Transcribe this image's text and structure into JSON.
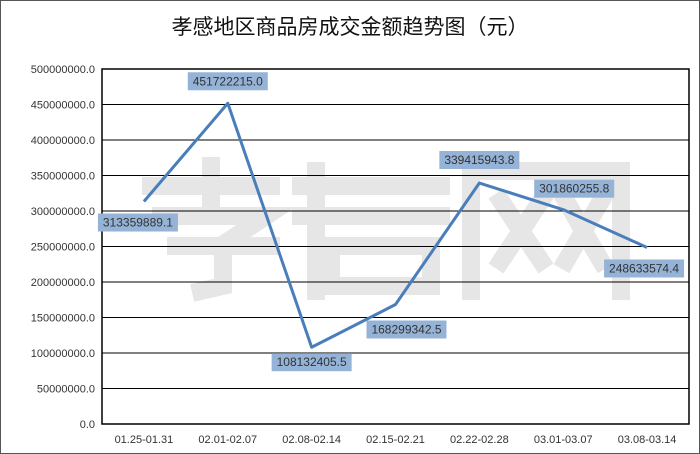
{
  "chart_data": {
    "type": "line",
    "title": "孝感地区商品房成交金额趋势图（元）",
    "xlabel": "",
    "ylabel": "",
    "categories": [
      "01.25-01.31",
      "02.01-02.07",
      "02.08-02.14",
      "02.15-02.21",
      "02.22-02.28",
      "03.01-03.07",
      "03.08-03.14"
    ],
    "values": [
      313359889.1,
      451722215.0,
      108132405.5,
      168299342.5,
      339415943.8,
      301860255.8,
      248633574.4
    ],
    "data_labels": [
      "313359889.1",
      "451722215.0",
      "108132405.5",
      "168299342.5",
      "339415943.8",
      "301860255.8",
      "248633574.4"
    ],
    "ylim": [
      0,
      500000000
    ],
    "yticks": [
      "0.0",
      "50000000.0",
      "100000000.0",
      "150000000.0",
      "200000000.0",
      "250000000.0",
      "300000000.0",
      "350000000.0",
      "400000000.0",
      "450000000.0",
      "500000000.0"
    ],
    "grid": true,
    "legend": "none",
    "watermark": "孝房网",
    "colors": {
      "line": "#4a7ebb",
      "label_bg": "#95b3d7",
      "grid": "#000000"
    }
  }
}
